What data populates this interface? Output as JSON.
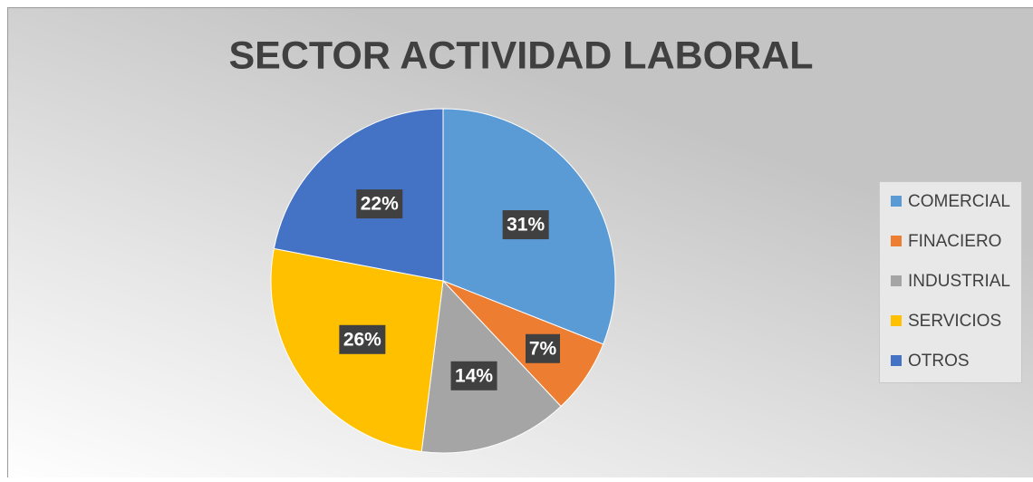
{
  "chart_data": {
    "type": "pie",
    "title": "SECTOR ACTIVIDAD LABORAL",
    "categories": [
      "COMERCIAL",
      "FINACIERO",
      "INDUSTRIAL",
      "SERVICIOS",
      "OTROS"
    ],
    "values": [
      31,
      7,
      14,
      26,
      22
    ],
    "value_labels": [
      "31%",
      "7%",
      "14%",
      "26%",
      "22%"
    ],
    "colors": [
      "#5b9bd5",
      "#ed7d31",
      "#a5a5a5",
      "#ffc000",
      "#4472c4"
    ],
    "legend": "right"
  }
}
